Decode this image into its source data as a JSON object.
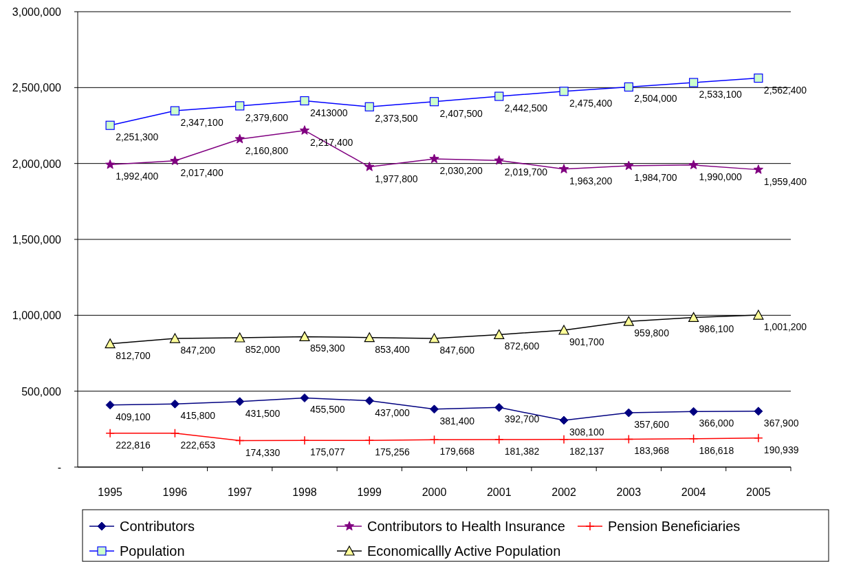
{
  "chart_data": {
    "type": "line",
    "categories": [
      "1995",
      "1996",
      "1997",
      "1998",
      "1999",
      "2000",
      "2001",
      "2002",
      "2003",
      "2004",
      "2005"
    ],
    "ylim": [
      0,
      3000000
    ],
    "yticks": [
      {
        "value": 0,
        "label": "-"
      },
      {
        "value": 500000,
        "label": "500,000"
      },
      {
        "value": 1000000,
        "label": "1,000,000"
      },
      {
        "value": 1500000,
        "label": "1,500,000"
      },
      {
        "value": 2000000,
        "label": "2,000,000"
      },
      {
        "value": 2500000,
        "label": "2,500,000"
      },
      {
        "value": 3000000,
        "label": "3,000,000"
      }
    ],
    "grid": "y",
    "legend": "bottom",
    "series": [
      {
        "name": "Contributors",
        "color": "#000080",
        "marker": "diamond",
        "values": [
          409100,
          415800,
          431500,
          455500,
          437000,
          381400,
          392700,
          308100,
          357600,
          366000,
          367900
        ],
        "value_labels": [
          "409,100",
          "415,800",
          "431,500",
          "455,500",
          "437,000",
          "381,400",
          "392,700",
          "308,100",
          "357,600",
          "366,000",
          "367,900"
        ]
      },
      {
        "name": "Contributors to Health Insurance",
        "color": "#800080",
        "marker": "star",
        "values": [
          1992400,
          2017400,
          2160800,
          2217400,
          1977800,
          2030200,
          2019700,
          1963200,
          1984700,
          1990000,
          1959400
        ],
        "value_labels": [
          "1,992,400",
          "2,017,400",
          "2,160,800",
          "2,217,400",
          "1,977,800",
          "2,030,200",
          "2,019,700",
          "1,963,200",
          "1,984,700",
          "1,990,000",
          "1,959,400"
        ]
      },
      {
        "name": "Pension Beneficiaries",
        "color": "#ff0000",
        "marker": "cross",
        "values": [
          222816,
          222653,
          174330,
          175077,
          175256,
          179668,
          181382,
          182137,
          183968,
          186618,
          190939
        ],
        "value_labels": [
          "222,816",
          "222,653",
          "174,330",
          "175,077",
          "175,256",
          "179,668",
          "181,382",
          "182,137",
          "183,968",
          "186,618",
          "190,939"
        ]
      },
      {
        "name": "Population",
        "color": "#0000ff",
        "marker": "square",
        "values": [
          2251300,
          2347100,
          2379600,
          2413000,
          2373500,
          2407500,
          2442500,
          2475400,
          2504000,
          2533100,
          2562400
        ],
        "value_labels": [
          "2,251,300",
          "2,347,100",
          "2,379,600",
          "2413000",
          "2,373,500",
          "2,407,500",
          "2,442,500",
          "2,475,400",
          "2,504,000",
          "2,533,100",
          "2,562,400"
        ]
      },
      {
        "name": "Economicallly Active Population",
        "color": "#000000",
        "marker": "triangle",
        "values": [
          812700,
          847200,
          852000,
          859300,
          853400,
          847600,
          872600,
          901700,
          959800,
          986100,
          1001200
        ],
        "value_labels": [
          "812,700",
          "847,200",
          "852,000",
          "859,300",
          "853,400",
          "847,600",
          "872,600",
          "901,700",
          "959,800",
          "986,100",
          "1,001,200"
        ]
      }
    ]
  }
}
